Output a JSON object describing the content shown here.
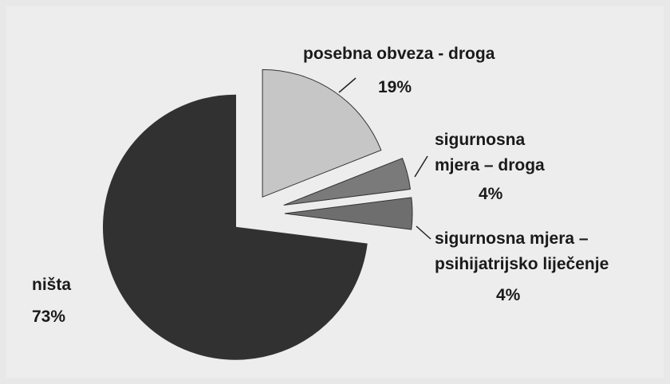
{
  "chart_data": {
    "type": "pie",
    "categories": [
      "posebna obveza - droga",
      "sigurnosna mjera – droga",
      "sigurnosna mjera – psihijatrijsko liječenje",
      "ništa"
    ],
    "values": [
      19,
      4,
      4,
      73
    ],
    "value_labels": [
      "19%",
      "4%",
      "4%",
      "73%"
    ],
    "colors": [
      "#c6c6c6",
      "#7a7a7a",
      "#6e6e6e",
      "#313131"
    ]
  }
}
